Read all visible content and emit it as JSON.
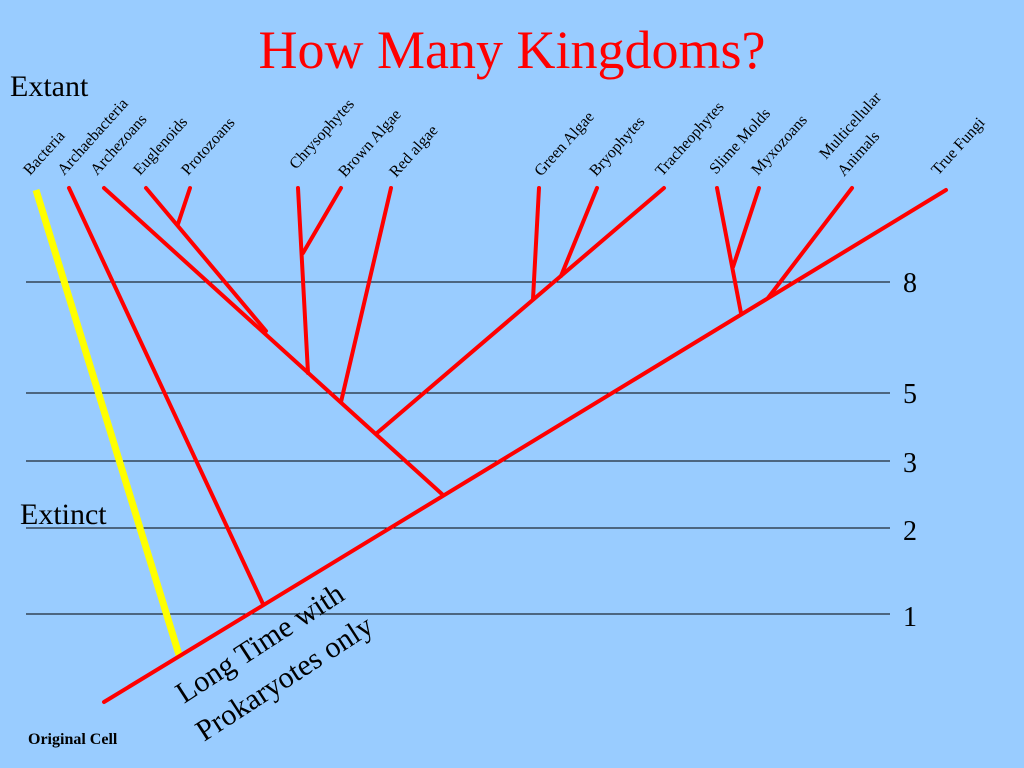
{
  "title": "How Many Kingdoms?",
  "labels": {
    "extant": "Extant",
    "extinct": "Extinct",
    "note_line1": "Long Time with",
    "note_line2": "Prokaryotes only",
    "origin": "Original Cell"
  },
  "levels": [
    "8",
    "5",
    "3",
    "2",
    "1"
  ],
  "taxa": [
    "Bacteria",
    "Archaebacteria",
    "Archezoans",
    "Euglenoids",
    "Protozoans",
    "Chrysophytes",
    "Brown Algae",
    "Red algae",
    "Green Algae",
    "Bryophytes",
    "Tracheophytes",
    "Slime Molds",
    "Myxozoans",
    "Multicellular",
    "Animals",
    "True Fungi"
  ],
  "colors": {
    "background": "#99ccff",
    "title": "#ff0000",
    "branches": "#ff0000",
    "extinct_lineage": "#ffff00",
    "text": "#000000"
  }
}
